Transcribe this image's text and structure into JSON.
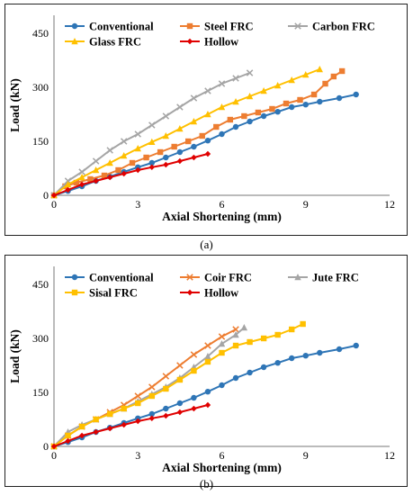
{
  "chart_data": [
    {
      "type": "line",
      "caption": "(a)",
      "xlabel": "Axial Shortening (mm)",
      "ylabel": "Load (kN)",
      "xlim": [
        0,
        12
      ],
      "ylim": [
        0,
        500
      ],
      "xticks": [
        "0",
        "3",
        "6",
        "9",
        "12"
      ],
      "yticks": [
        "0",
        "150",
        "300",
        "450"
      ],
      "grid": false,
      "legend": "top-inside",
      "series": [
        {
          "name": "Conventional",
          "color": "#2e75b6",
          "marker": "circle",
          "x": [
            0,
            0.5,
            1.0,
            1.5,
            2.0,
            2.5,
            3.0,
            3.5,
            4.0,
            4.5,
            5.0,
            5.5,
            6.0,
            6.5,
            7.0,
            7.5,
            8.0,
            8.5,
            9.0,
            9.5,
            10.2,
            10.8
          ],
          "y": [
            0,
            12,
            25,
            40,
            52,
            65,
            78,
            90,
            105,
            120,
            135,
            152,
            170,
            190,
            205,
            220,
            232,
            245,
            252,
            260,
            270,
            280
          ]
        },
        {
          "name": "Steel FRC",
          "color": "#ed7d31",
          "marker": "square",
          "x": [
            0,
            0.4,
            0.8,
            1.3,
            1.8,
            2.3,
            2.8,
            3.3,
            3.8,
            4.3,
            4.8,
            5.3,
            5.8,
            6.3,
            6.8,
            7.3,
            7.8,
            8.3,
            8.8,
            9.3,
            9.7,
            10.0,
            10.3
          ],
          "y": [
            0,
            25,
            35,
            45,
            55,
            70,
            90,
            105,
            120,
            135,
            150,
            165,
            190,
            210,
            220,
            230,
            240,
            255,
            265,
            280,
            310,
            330,
            345
          ]
        },
        {
          "name": "Carbon FRC",
          "color": "#a5a5a5",
          "marker": "x",
          "x": [
            0,
            0.5,
            1.0,
            1.5,
            2.0,
            2.5,
            3.0,
            3.5,
            4.0,
            4.5,
            5.0,
            5.5,
            6.0,
            6.5,
            7.0
          ],
          "y": [
            0,
            40,
            65,
            95,
            125,
            150,
            170,
            195,
            220,
            245,
            270,
            290,
            310,
            325,
            340
          ]
        },
        {
          "name": "Glass FRC",
          "color": "#ffc000",
          "marker": "triangle",
          "x": [
            0,
            0.5,
            1.0,
            1.5,
            2.0,
            2.5,
            3.0,
            3.5,
            4.0,
            4.5,
            5.0,
            5.5,
            6.0,
            6.5,
            7.0,
            7.5,
            8.0,
            8.5,
            9.0,
            9.5
          ],
          "y": [
            0,
            30,
            50,
            70,
            90,
            110,
            130,
            148,
            165,
            185,
            205,
            225,
            245,
            260,
            275,
            290,
            305,
            320,
            335,
            350
          ]
        },
        {
          "name": "Hollow",
          "color": "#e00000",
          "marker": "diamond",
          "x": [
            0,
            0.5,
            1.0,
            1.5,
            2.0,
            2.5,
            3.0,
            3.5,
            4.0,
            4.5,
            5.0,
            5.5
          ],
          "y": [
            0,
            15,
            30,
            40,
            50,
            60,
            70,
            78,
            85,
            95,
            105,
            115
          ]
        }
      ]
    },
    {
      "type": "line",
      "caption": "(b)",
      "xlabel": "Axial Shortening (mm)",
      "ylabel": "Load (kN)",
      "xlim": [
        0,
        12
      ],
      "ylim": [
        0,
        500
      ],
      "xticks": [
        "0",
        "3",
        "6",
        "9",
        "12"
      ],
      "yticks": [
        "0",
        "150",
        "300",
        "450"
      ],
      "grid": false,
      "legend": "top-inside",
      "series": [
        {
          "name": "Conventional",
          "color": "#2e75b6",
          "marker": "circle",
          "x": [
            0,
            0.5,
            1.0,
            1.5,
            2.0,
            2.5,
            3.0,
            3.5,
            4.0,
            4.5,
            5.0,
            5.5,
            6.0,
            6.5,
            7.0,
            7.5,
            8.0,
            8.5,
            9.0,
            9.5,
            10.2,
            10.8
          ],
          "y": [
            0,
            12,
            25,
            40,
            52,
            65,
            78,
            90,
            105,
            120,
            135,
            152,
            170,
            190,
            205,
            220,
            232,
            245,
            252,
            260,
            270,
            280
          ]
        },
        {
          "name": "Coir FRC",
          "color": "#ed7d31",
          "marker": "x",
          "x": [
            0,
            0.5,
            1.0,
            1.5,
            2.0,
            2.5,
            3.0,
            3.5,
            4.0,
            4.5,
            5.0,
            5.5,
            6.0,
            6.5
          ],
          "y": [
            0,
            30,
            55,
            75,
            95,
            115,
            140,
            165,
            195,
            225,
            255,
            280,
            305,
            325
          ]
        },
        {
          "name": "Jute FRC",
          "color": "#a5a5a5",
          "marker": "triangle",
          "x": [
            0,
            0.5,
            1.0,
            1.5,
            2.0,
            2.5,
            3.0,
            3.5,
            4.0,
            4.5,
            5.0,
            5.5,
            6.0,
            6.5,
            6.8
          ],
          "y": [
            0,
            40,
            60,
            75,
            90,
            105,
            125,
            145,
            165,
            190,
            220,
            250,
            285,
            310,
            330
          ]
        },
        {
          "name": "Sisal FRC",
          "color": "#ffc000",
          "marker": "square",
          "x": [
            0,
            0.5,
            1.0,
            1.5,
            2.0,
            2.5,
            3.0,
            3.5,
            4.0,
            4.5,
            5.0,
            5.5,
            6.0,
            6.5,
            7.0,
            7.5,
            8.0,
            8.5,
            8.9
          ],
          "y": [
            0,
            30,
            55,
            75,
            90,
            105,
            120,
            140,
            160,
            185,
            210,
            235,
            260,
            280,
            290,
            300,
            310,
            325,
            340
          ]
        },
        {
          "name": "Hollow",
          "color": "#e00000",
          "marker": "diamond",
          "x": [
            0,
            0.5,
            1.0,
            1.5,
            2.0,
            2.5,
            3.0,
            3.5,
            4.0,
            4.5,
            5.0,
            5.5
          ],
          "y": [
            0,
            15,
            30,
            40,
            50,
            60,
            70,
            78,
            85,
            95,
            105,
            115
          ]
        }
      ]
    }
  ]
}
